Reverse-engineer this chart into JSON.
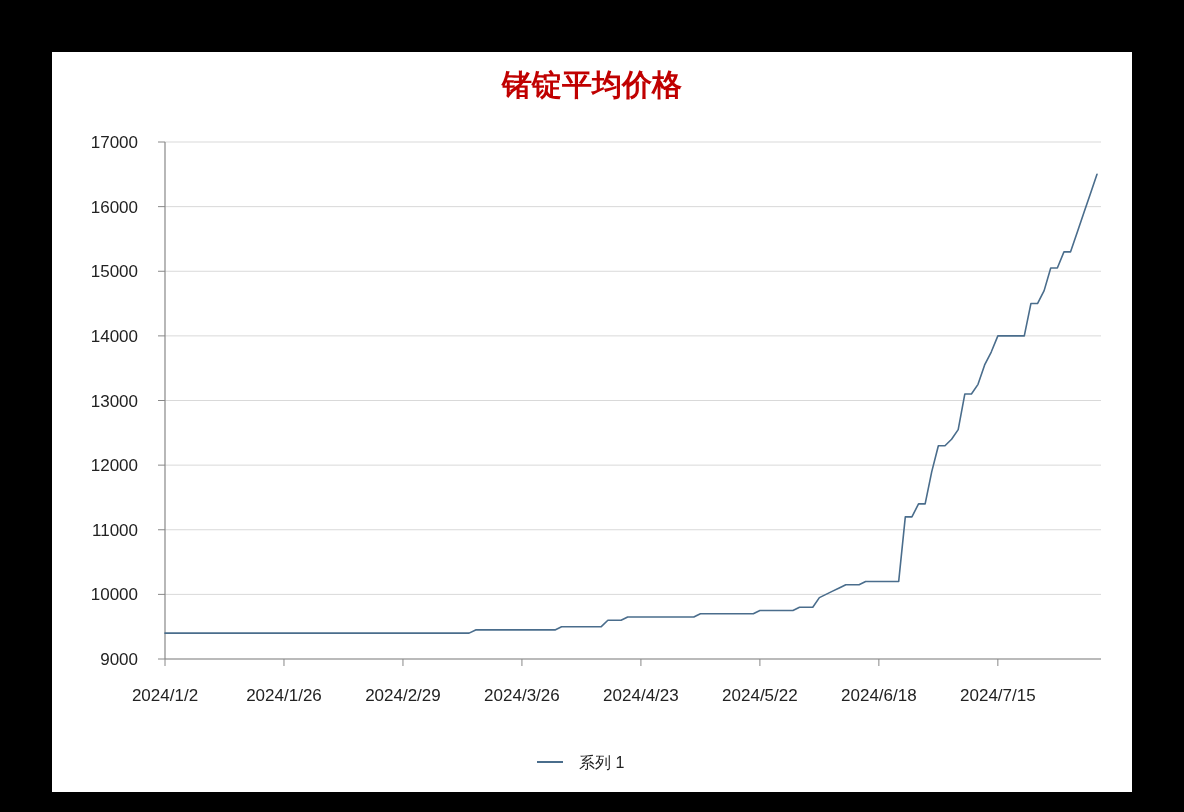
{
  "chart_data": {
    "type": "line",
    "title": "锗锭平均价格",
    "categories": [
      "2024/1/2",
      null,
      null,
      null,
      null,
      null,
      null,
      null,
      null,
      null,
      null,
      null,
      null,
      null,
      null,
      null,
      null,
      null,
      "2024/1/26",
      null,
      null,
      null,
      null,
      null,
      null,
      null,
      null,
      null,
      null,
      null,
      null,
      null,
      null,
      null,
      null,
      null,
      "2024/2/29",
      null,
      null,
      null,
      null,
      null,
      null,
      null,
      null,
      null,
      null,
      null,
      null,
      null,
      null,
      null,
      null,
      null,
      "2024/3/26",
      null,
      null,
      null,
      null,
      null,
      null,
      null,
      null,
      null,
      null,
      null,
      null,
      null,
      null,
      null,
      null,
      null,
      "2024/4/23",
      null,
      null,
      null,
      null,
      null,
      null,
      null,
      null,
      null,
      null,
      null,
      null,
      null,
      null,
      null,
      null,
      null,
      "2024/5/22",
      null,
      null,
      null,
      null,
      null,
      null,
      null,
      null,
      null,
      null,
      null,
      null,
      null,
      null,
      null,
      null,
      null,
      "2024/6/18",
      null,
      null,
      null,
      null,
      null,
      null,
      null,
      null,
      null,
      null,
      null,
      null,
      null,
      null,
      null,
      null,
      null,
      "2024/7/15",
      null,
      null,
      null,
      null,
      null,
      null,
      null,
      null,
      null,
      null,
      null,
      null,
      null,
      null,
      null
    ],
    "series": [
      {
        "name": "系列 1",
        "color": "#4a6d8c",
        "values": [
          9400,
          9400,
          9400,
          9400,
          9400,
          9400,
          9400,
          9400,
          9400,
          9400,
          9400,
          9400,
          9400,
          9400,
          9400,
          9400,
          9400,
          9400,
          9400,
          9400,
          9400,
          9400,
          9400,
          9400,
          9400,
          9400,
          9400,
          9400,
          9400,
          9400,
          9400,
          9400,
          9400,
          9400,
          9400,
          9400,
          9400,
          9400,
          9400,
          9400,
          9400,
          9400,
          9400,
          9400,
          9400,
          9400,
          9400,
          9450,
          9450,
          9450,
          9450,
          9450,
          9450,
          9450,
          9450,
          9450,
          9450,
          9450,
          9450,
          9450,
          9500,
          9500,
          9500,
          9500,
          9500,
          9500,
          9500,
          9600,
          9600,
          9600,
          9650,
          9650,
          9650,
          9650,
          9650,
          9650,
          9650,
          9650,
          9650,
          9650,
          9650,
          9700,
          9700,
          9700,
          9700,
          9700,
          9700,
          9700,
          9700,
          9700,
          9750,
          9750,
          9750,
          9750,
          9750,
          9750,
          9800,
          9800,
          9800,
          9950,
          10000,
          10050,
          10100,
          10150,
          10150,
          10150,
          10200,
          10200,
          10200,
          10200,
          10200,
          10200,
          11200,
          11200,
          11400,
          11400,
          11900,
          12300,
          12300,
          12400,
          12550,
          13100,
          13100,
          13250,
          13550,
          13750,
          14000,
          14000,
          14000,
          14000,
          14000,
          14500,
          14500,
          14700,
          15050,
          15050,
          15300,
          15300,
          15600,
          15900,
          16200,
          16500
        ]
      }
    ],
    "ylim": [
      9000,
      17000
    ],
    "yticks": [
      9000,
      10000,
      11000,
      12000,
      13000,
      14000,
      15000,
      16000,
      17000
    ],
    "grid": "y",
    "legend": "bottom"
  }
}
